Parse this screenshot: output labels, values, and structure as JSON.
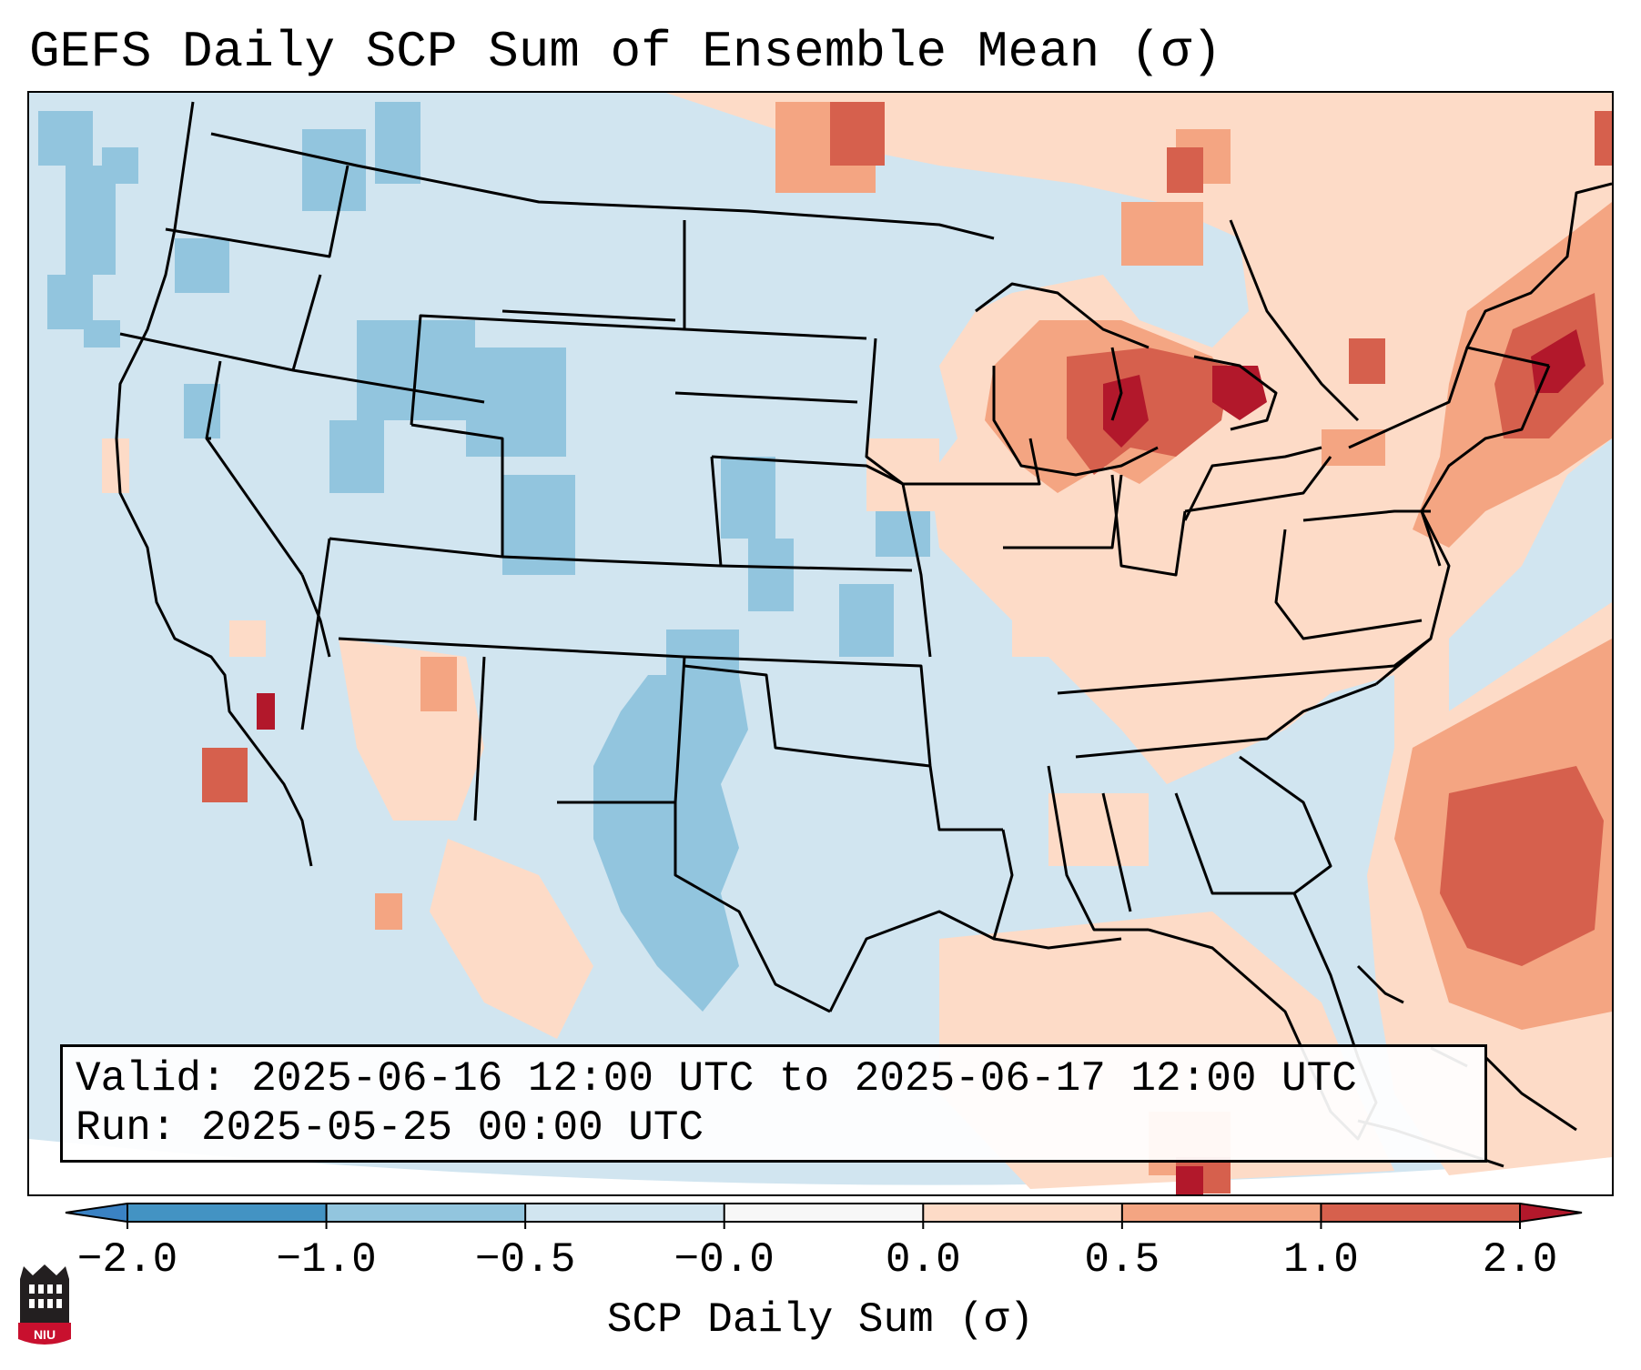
{
  "title": "GEFS Daily SCP Sum of Ensemble Mean (σ)",
  "info": {
    "valid_label": "Valid:",
    "valid_value": "2025-06-16 12:00 UTC to 2025-06-17 12:00 UTC",
    "run_label": "Run:",
    "run_value": "2025-05-25 00:00 UTC"
  },
  "colorbar": {
    "label": "SCP Daily Sum (σ)",
    "ticks": [
      "−2.0",
      "−1.0",
      "−0.5",
      "−0.0",
      "0.0",
      "0.5",
      "1.0",
      "2.0"
    ],
    "bins": [
      {
        "range": "< -2.0",
        "color": "#3a82c4"
      },
      {
        "range": "-2.0 to -1.0",
        "color": "#4393c3"
      },
      {
        "range": "-1.0 to -0.5",
        "color": "#92c5de"
      },
      {
        "range": "-0.5 to -0.0",
        "color": "#d1e5f0"
      },
      {
        "range": "-0.0 to 0.0",
        "color": "#f7f7f7"
      },
      {
        "range": "0.0 to 0.5",
        "color": "#fddbc7"
      },
      {
        "range": "0.5 to 1.0",
        "color": "#f4a582"
      },
      {
        "range": "1.0 to 2.0",
        "color": "#d6604d"
      },
      {
        "range": "> 2.0",
        "color": "#b2182b"
      }
    ]
  },
  "map": {
    "region": "Contiguous United States",
    "background_color": "#d1e5f0",
    "anomaly_regions": [
      {
        "name": "Great Lakes",
        "level": "1.0 to 2.0"
      },
      {
        "name": "New England",
        "level": "1.0 to 2.0"
      },
      {
        "name": "Southern California coast",
        "level": "1.0 to 2.0"
      },
      {
        "name": "Western Atlantic",
        "level": "0.5 to 1.0"
      },
      {
        "name": "Texas",
        "level": "-1.0 to -0.5"
      },
      {
        "name": "Northern Rockies",
        "level": "-1.0 to -0.5"
      },
      {
        "name": "Gulf of Mexico",
        "level": "0.0 to 0.5"
      }
    ]
  },
  "logo": {
    "text": "NIU",
    "color": "#c8102e"
  }
}
